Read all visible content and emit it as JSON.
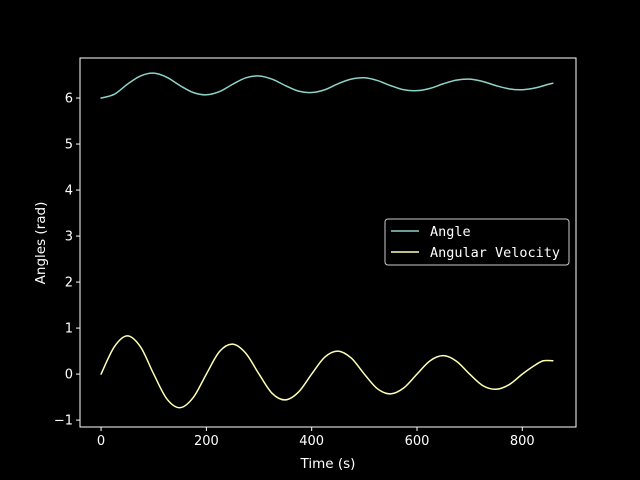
{
  "chart_data": {
    "type": "line",
    "title": "",
    "xlabel": "Time (s)",
    "ylabel": "Angles (rad)",
    "xlim": [
      -40,
      902
    ],
    "ylim": [
      -1.15,
      6.87
    ],
    "xticks": [
      0,
      200,
      400,
      600,
      800
    ],
    "yticks": [
      -1,
      0,
      1,
      2,
      3,
      4,
      5,
      6
    ],
    "grid": false,
    "legend_position": "center-right",
    "background": "#000000",
    "series": [
      {
        "name": "Angle",
        "color": "#8dd3c7",
        "points": [
          [
            0,
            6.0
          ],
          [
            25,
            6.08
          ],
          [
            50,
            6.3
          ],
          [
            75,
            6.48
          ],
          [
            100,
            6.54
          ],
          [
            125,
            6.45
          ],
          [
            150,
            6.27
          ],
          [
            175,
            6.12
          ],
          [
            200,
            6.07
          ],
          [
            225,
            6.14
          ],
          [
            250,
            6.3
          ],
          [
            275,
            6.44
          ],
          [
            300,
            6.48
          ],
          [
            325,
            6.41
          ],
          [
            350,
            6.27
          ],
          [
            375,
            6.15
          ],
          [
            400,
            6.12
          ],
          [
            425,
            6.18
          ],
          [
            450,
            6.31
          ],
          [
            475,
            6.41
          ],
          [
            500,
            6.44
          ],
          [
            525,
            6.38
          ],
          [
            550,
            6.27
          ],
          [
            575,
            6.18
          ],
          [
            600,
            6.16
          ],
          [
            625,
            6.21
          ],
          [
            650,
            6.31
          ],
          [
            675,
            6.39
          ],
          [
            700,
            6.41
          ],
          [
            725,
            6.36
          ],
          [
            750,
            6.27
          ],
          [
            775,
            6.2
          ],
          [
            800,
            6.18
          ],
          [
            825,
            6.22
          ],
          [
            850,
            6.3
          ],
          [
            858,
            6.32
          ]
        ]
      },
      {
        "name": "Angular Velocity",
        "color": "#ffffb3",
        "points": [
          [
            0,
            0.0
          ],
          [
            25,
            0.59
          ],
          [
            50,
            0.83
          ],
          [
            75,
            0.59
          ],
          [
            100,
            0.0
          ],
          [
            125,
            -0.54
          ],
          [
            150,
            -0.73
          ],
          [
            175,
            -0.51
          ],
          [
            200,
            0.0
          ],
          [
            225,
            0.49
          ],
          [
            250,
            0.65
          ],
          [
            275,
            0.45
          ],
          [
            300,
            0.0
          ],
          [
            325,
            -0.42
          ],
          [
            350,
            -0.56
          ],
          [
            375,
            -0.39
          ],
          [
            400,
            0.0
          ],
          [
            425,
            0.37
          ],
          [
            450,
            0.5
          ],
          [
            475,
            0.35
          ],
          [
            500,
            0.0
          ],
          [
            525,
            -0.32
          ],
          [
            550,
            -0.43
          ],
          [
            575,
            -0.3
          ],
          [
            600,
            0.0
          ],
          [
            625,
            0.29
          ],
          [
            650,
            0.4
          ],
          [
            675,
            0.28
          ],
          [
            700,
            0.0
          ],
          [
            725,
            -0.25
          ],
          [
            750,
            -0.33
          ],
          [
            775,
            -0.23
          ],
          [
            800,
            0.0
          ],
          [
            825,
            0.2
          ],
          [
            840,
            0.29
          ],
          [
            858,
            0.29
          ]
        ]
      }
    ]
  }
}
